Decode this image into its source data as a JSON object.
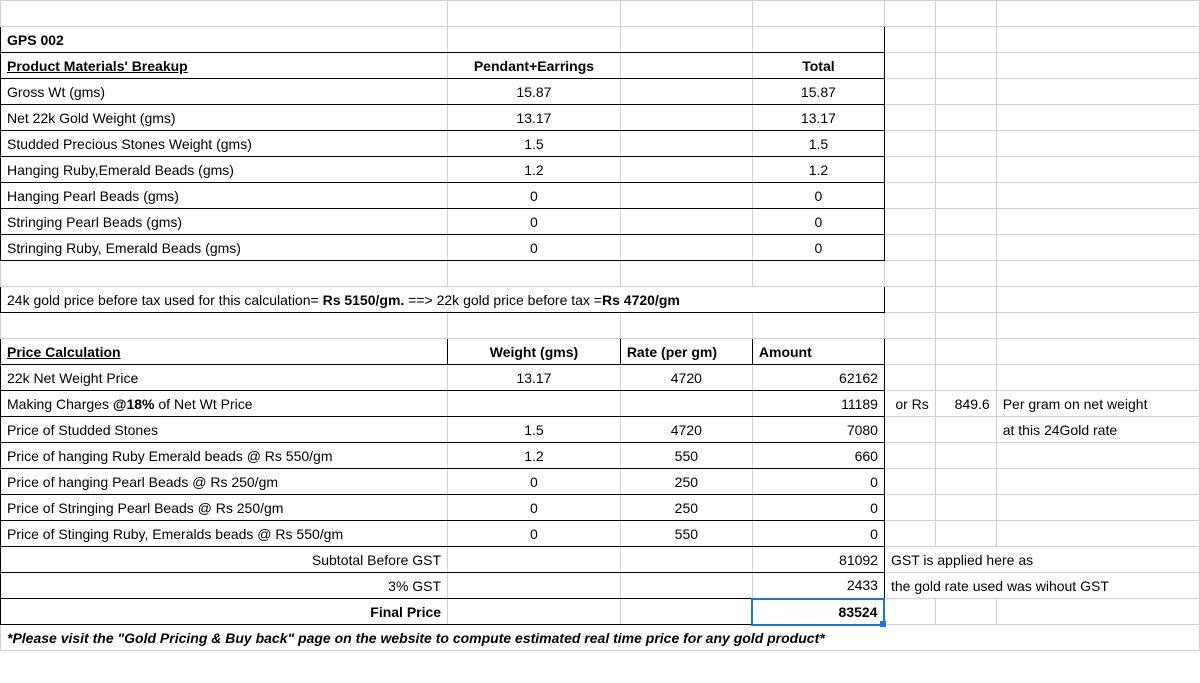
{
  "title": "GPS 002",
  "materials_header": {
    "label": "Product Materials' Breakup",
    "col_b": "Pendant+Earrings",
    "col_total": "Total"
  },
  "materials_rows": [
    {
      "label": "Gross Wt (gms)",
      "pe": "15.87",
      "total": "15.87"
    },
    {
      "label": "Net 22k Gold Weight (gms)",
      "pe": "13.17",
      "total": "13.17"
    },
    {
      "label": "Studded Precious Stones Weight (gms)",
      "pe": "1.5",
      "total": "1.5"
    },
    {
      "label": "Hanging Ruby,Emerald Beads (gms)",
      "pe": "1.2",
      "total": "1.2"
    },
    {
      "label": "Hanging Pearl Beads (gms)",
      "pe": "0",
      "total": "0"
    },
    {
      "label": "Stringing Pearl Beads (gms)",
      "pe": "0",
      "total": "0"
    },
    {
      "label": "Stringing Ruby, Emerald Beads (gms)",
      "pe": "0",
      "total": "0"
    }
  ],
  "gold_price_note": {
    "part1": "24k gold price before tax used for this calculation= ",
    "bold1": "Rs 5150/gm.",
    "part2": " ==> 22k gold price before tax =",
    "bold2": "Rs 4720/gm"
  },
  "price_calc_header": {
    "label": "Price Calculation",
    "weight": "Weight (gms)",
    "rate": "Rate (per gm)",
    "amount": "Amount"
  },
  "price_rows": [
    {
      "label": "22k Net Weight Price",
      "weight": "13.17",
      "rate": "4720",
      "amount": "62162"
    },
    {
      "label": " Making Charges @18% of Net Wt Price",
      "weight": "",
      "rate": "",
      "amount": "11189"
    },
    {
      "label": "Price of Studded Stones",
      "weight": "1.5",
      "rate": "4720",
      "amount": "7080"
    },
    {
      "label": "Price of hanging Ruby Emerald beads @ Rs 550/gm",
      "weight": "1.2",
      "rate": "550",
      "amount": "660"
    },
    {
      "label": "Price of hanging Pearl Beads @ Rs 250/gm",
      "weight": "0",
      "rate": "250",
      "amount": "0"
    },
    {
      "label": "Price of Stringing Pearl Beads @ Rs 250/gm",
      "weight": "0",
      "rate": "250",
      "amount": "0"
    },
    {
      "label": "Price of Stinging Ruby, Emeralds beads @ Rs 550/gm",
      "weight": "0",
      "rate": "550",
      "amount": "0"
    }
  ],
  "making_note_1a": "or Rs",
  "making_note_1b": "849.6",
  "making_note_1c": "Per gram on net weight",
  "making_note_2": "at this 24Gold rate",
  "subtotal_label": "Subtotal Before GST",
  "subtotal_amount": "81092",
  "gst_label": "3% GST",
  "gst_amount": "2433",
  "gst_note_1": "GST is applied here as",
  "gst_note_2": "the gold rate used was wihout GST",
  "final_label": "Final Price",
  "final_amount": "83524",
  "footer_note": "*Please visit the \"Gold Pricing & Buy back\" page on the website to compute estimated real time price for any gold product*"
}
